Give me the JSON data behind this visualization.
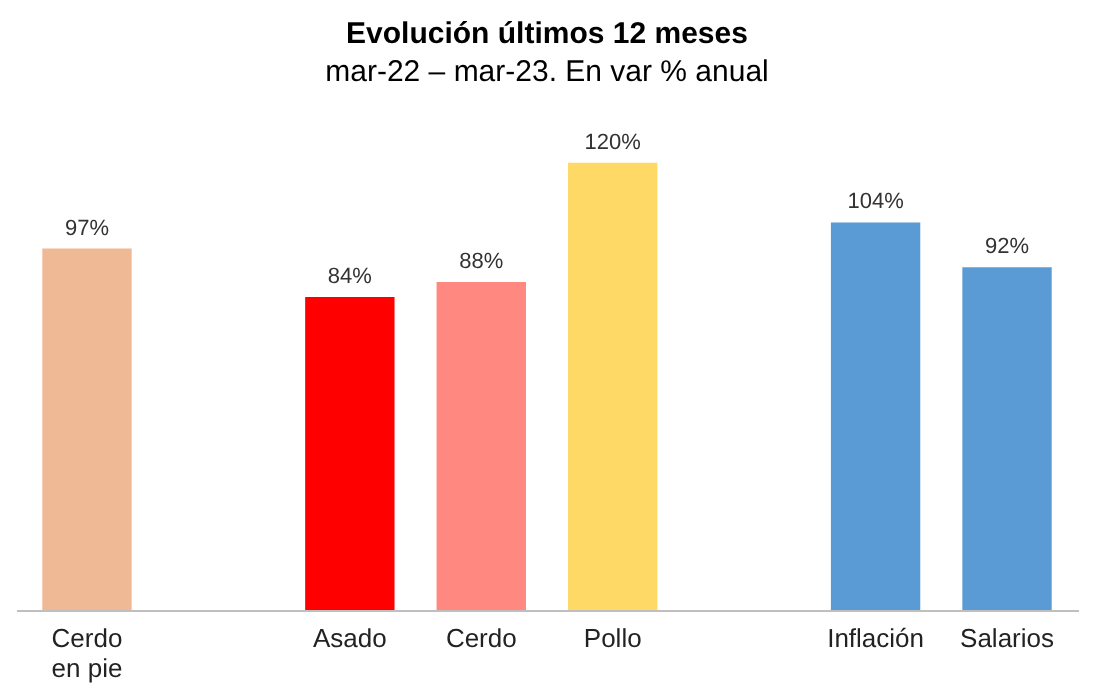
{
  "chart_data": {
    "type": "bar",
    "title": "Evolución últimos 12 meses",
    "subtitle": "mar-22 – mar-23. En var % anual",
    "categories": [
      "Cerdo en pie",
      null,
      "Asado",
      "Cerdo",
      "Pollo",
      null,
      "Inflación",
      "Salarios"
    ],
    "values": [
      97,
      null,
      84,
      88,
      120,
      null,
      104,
      92
    ],
    "colors": [
      "#f0b995",
      null,
      "#ff0000",
      "#ff8880",
      "#ffd966",
      null,
      "#5b9bd5",
      "#5b9bd5"
    ],
    "value_labels": [
      "97%",
      null,
      "84%",
      "88%",
      "120%",
      null,
      "104%",
      "92%"
    ]
  }
}
